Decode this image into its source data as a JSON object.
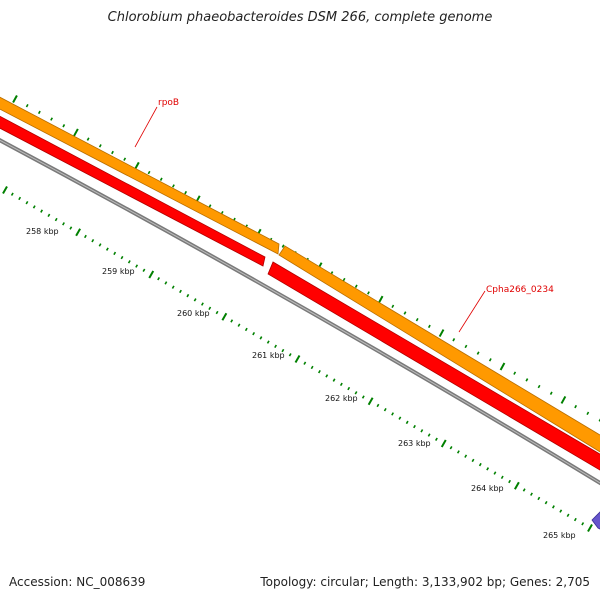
{
  "title": "Chlorobium phaeobacteroides DSM 266, complete genome",
  "accession": "Accession: NC_008639",
  "stats": "Topology: circular; Length: 3,133,902 bp; Genes: 2,705",
  "colors": {
    "forward_gene": "#ff9900",
    "forward_edge": "#b86e00",
    "reverse_gene": "#ff0000",
    "reverse_edge": "#b00000",
    "backbone": "#7a7a7a",
    "ticks": "#008000",
    "label_color": "#e00000",
    "other_feature": "#6655cc"
  },
  "genes": [
    {
      "name": "rpoB",
      "strand": "forward"
    },
    {
      "name": "Cpha266_0234",
      "strand": "forward"
    }
  ],
  "scale_labels": [
    "258 kbp",
    "259 kbp",
    "260 kbp",
    "261 kbp",
    "262 kbp",
    "263 kbp",
    "264 kbp",
    "265 kbp"
  ]
}
